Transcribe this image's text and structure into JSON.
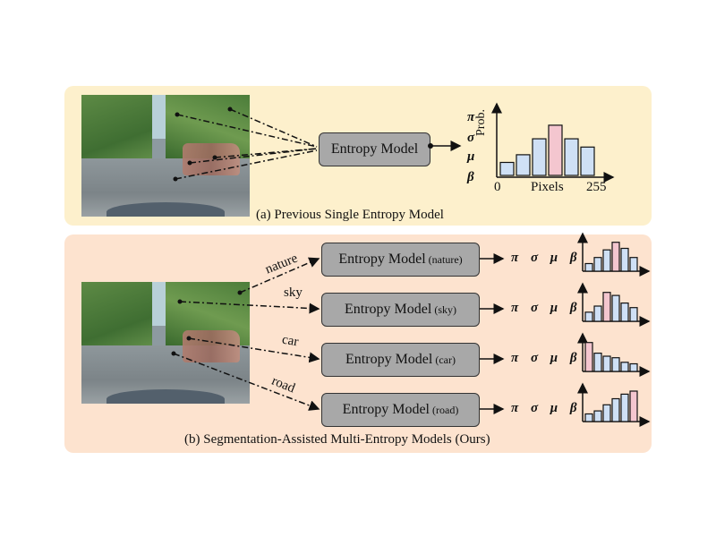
{
  "panel_a": {
    "caption": "(a) Previous Single Entropy Model",
    "entropy_model_label": "Entropy Model",
    "params": [
      "π",
      "σ",
      "μ",
      "β"
    ],
    "histogram": {
      "ylabel": "Prob.",
      "xlabel": "Pixels",
      "x_min_label": "0",
      "x_max_label": "255",
      "bars": [
        0.22,
        0.35,
        0.62,
        0.85,
        0.62,
        0.48
      ],
      "highlight_index": 3
    }
  },
  "panel_b": {
    "caption": "(b) Segmentation-Assisted Multi-Entropy Models (Ours)",
    "params_text": "π σ μ β",
    "rows": [
      {
        "seg_label": "nature",
        "model_label": "Entropy Model",
        "model_tag": "(nature)",
        "bars": [
          0.25,
          0.45,
          0.7,
          0.95,
          0.75,
          0.45
        ],
        "highlight": "#f4c6cf"
      },
      {
        "seg_label": "sky",
        "model_label": "Entropy Model",
        "model_tag": "(sky)",
        "bars": [
          0.3,
          0.5,
          0.95,
          0.85,
          0.6,
          0.45
        ],
        "highlight": "#f4c6cf"
      },
      {
        "seg_label": "car",
        "model_label": "Entropy Model",
        "model_tag": "(car)",
        "bars": [
          0.95,
          0.6,
          0.5,
          0.45,
          0.3,
          0.25
        ],
        "highlight": "#f4c6cf"
      },
      {
        "seg_label": "road",
        "model_label": "Entropy Model",
        "model_tag": "(road)",
        "bars": [
          0.25,
          0.35,
          0.55,
          0.75,
          0.9,
          1.0
        ],
        "highlight": "#f4c6cf"
      }
    ]
  },
  "colors": {
    "panel_a_bg": "#fdf0cc",
    "panel_b_bg": "#fde3cf",
    "bar_fill": "#cfe0f5",
    "bar_highlight": "#f4c6cf",
    "model_box": "#a8a8a8"
  }
}
